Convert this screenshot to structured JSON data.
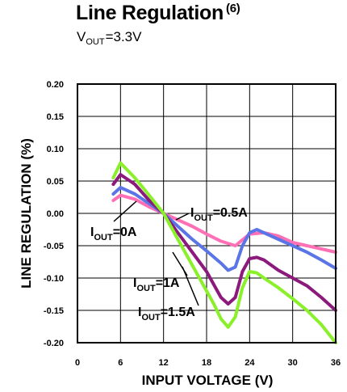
{
  "header": {
    "title": "Line Regulation",
    "title_note": "(6)",
    "condition_main": "V",
    "condition_sub": "OUT",
    "condition_rest": "=3.3V"
  },
  "chart_data": {
    "type": "line",
    "xlabel": "INPUT VOLTAGE (V)",
    "ylabel": "LINE REGULATION (%)",
    "xlim": [
      0,
      36
    ],
    "ylim": [
      -0.2,
      0.2
    ],
    "x_ticks": [
      "0",
      "6",
      "12",
      "18",
      "24",
      "30",
      "36"
    ],
    "y_ticks": [
      "0.20",
      "0.15",
      "0.10",
      "0.05",
      "0.00",
      "-0.05",
      "-0.10",
      "-0.15",
      "-0.20"
    ],
    "grid": true,
    "series": [
      {
        "name": "I_OUT=0A",
        "color": "#ff6fb5",
        "x": [
          5,
          6,
          8,
          10,
          12,
          14,
          16,
          18,
          20,
          22,
          24,
          26,
          28,
          30,
          32,
          34,
          36
        ],
        "y": [
          0.02,
          0.028,
          0.022,
          0.01,
          0.0,
          -0.01,
          -0.02,
          -0.032,
          -0.043,
          -0.05,
          -0.032,
          -0.03,
          -0.035,
          -0.045,
          -0.05,
          -0.055,
          -0.06
        ]
      },
      {
        "name": "I_OUT=0.5A",
        "color": "#5b75e6",
        "x": [
          5,
          6,
          8,
          10,
          12,
          14,
          16,
          18,
          20,
          21,
          22,
          23,
          24,
          25,
          26,
          28,
          30,
          32,
          34,
          36
        ],
        "y": [
          0.03,
          0.04,
          0.03,
          0.015,
          0.0,
          -0.02,
          -0.04,
          -0.058,
          -0.077,
          -0.088,
          -0.083,
          -0.05,
          -0.03,
          -0.025,
          -0.03,
          -0.04,
          -0.05,
          -0.06,
          -0.072,
          -0.085
        ]
      },
      {
        "name": "I_OUT=1A",
        "color": "#8b1a7c",
        "x": [
          5,
          6,
          8,
          10,
          12,
          14,
          16,
          18,
          19,
          20,
          21,
          22,
          23,
          24,
          25,
          26,
          28,
          30,
          32,
          34,
          36
        ],
        "y": [
          0.045,
          0.06,
          0.045,
          0.02,
          0.0,
          -0.03,
          -0.06,
          -0.09,
          -0.11,
          -0.13,
          -0.14,
          -0.13,
          -0.09,
          -0.07,
          -0.068,
          -0.072,
          -0.088,
          -0.1,
          -0.112,
          -0.13,
          -0.15
        ]
      },
      {
        "name": "I_OUT=1.5A",
        "color": "#8af02a",
        "x": [
          5,
          6,
          8,
          10,
          12,
          14,
          16,
          18,
          19,
          20,
          21,
          22,
          23,
          24,
          25,
          26,
          28,
          30,
          32,
          34,
          36
        ],
        "y": [
          0.055,
          0.078,
          0.055,
          0.028,
          0.0,
          -0.04,
          -0.08,
          -0.12,
          -0.14,
          -0.163,
          -0.176,
          -0.16,
          -0.115,
          -0.09,
          -0.092,
          -0.1,
          -0.115,
          -0.132,
          -0.15,
          -0.172,
          -0.2
        ]
      }
    ],
    "annotations": [
      {
        "main": "I",
        "sub": "OUT",
        "rest": "=0A"
      },
      {
        "main": "I",
        "sub": "OUT",
        "rest": "=0.5A"
      },
      {
        "main": "I",
        "sub": "OUT",
        "rest": "=1A"
      },
      {
        "main": "I",
        "sub": "OUT",
        "rest": "=1.5A"
      }
    ]
  }
}
